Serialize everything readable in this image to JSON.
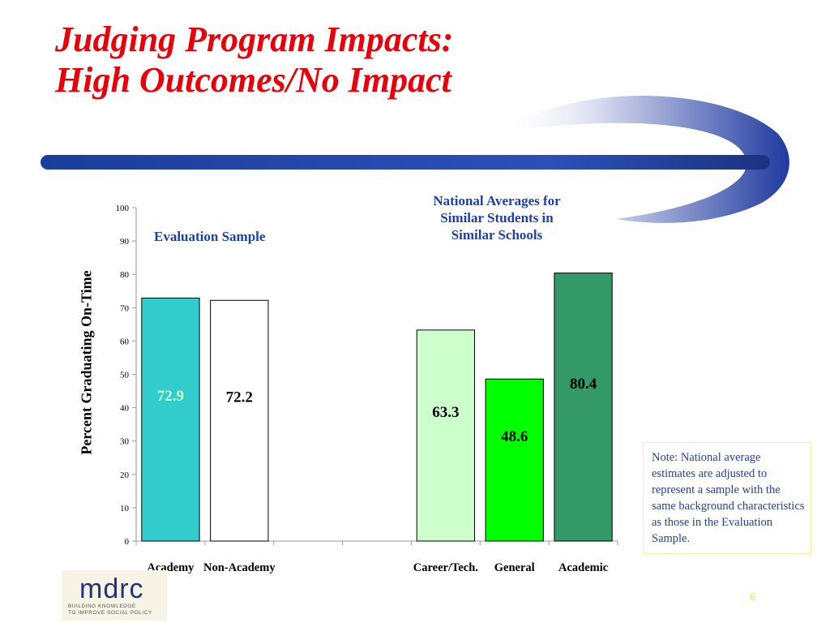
{
  "slide": {
    "title_line1": "Judging Program Impacts:",
    "title_line2": "High Outcomes/No Impact",
    "evaluation_sample_label": "Evaluation Sample",
    "national_averages_line1": "National Averages for",
    "national_averages_line2": "Similar Students in",
    "national_averages_line3": "Similar Schools",
    "note": "Note: National average estimates are adjusted to represent a sample with the same background characteristics as those in the Evaluation Sample.",
    "page_number": "6"
  },
  "logo": {
    "word": "mdrc",
    "tagline_line1": "BUILDING KNOWLEDGE",
    "tagline_line2": "TO IMPROVE SOCIAL POLICY"
  },
  "colors": {
    "title": "#e8000b",
    "annotation_text": "#1f3fa8",
    "swoosh_dark": "#1f3a9f"
  },
  "chart_data": {
    "type": "bar",
    "ylabel": "Percent Graduating On-Time",
    "ylim": [
      0,
      100
    ],
    "yticks": [
      0,
      10,
      20,
      30,
      40,
      50,
      60,
      70,
      80,
      90,
      100
    ],
    "categories": [
      "Academy",
      "Non-Academy",
      "",
      "",
      "Career/Tech.",
      "General",
      "Academic"
    ],
    "values": [
      72.9,
      72.2,
      null,
      null,
      63.3,
      48.6,
      80.4
    ],
    "value_labels": [
      "72.9",
      "72.2",
      "",
      "",
      "63.3",
      "48.6",
      "80.4"
    ],
    "bar_colors": [
      "#33cccc",
      "#ffffff",
      "",
      "",
      "#ccffcc",
      "#00ff00",
      "#339966"
    ],
    "value_label_colors": [
      "#ccffcc",
      "#000000",
      "",
      "",
      "#000000",
      "#000000",
      "#000000"
    ],
    "grid": false,
    "legend": "none"
  }
}
